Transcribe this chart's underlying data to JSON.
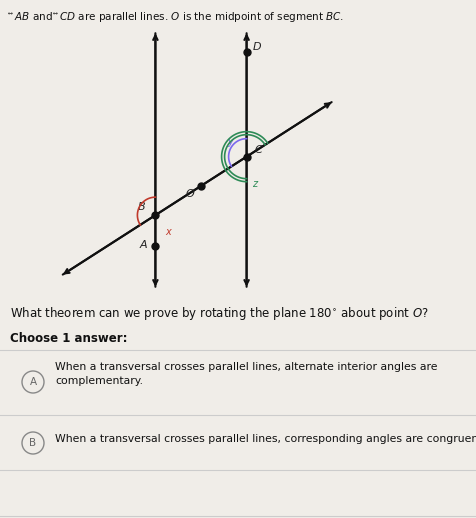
{
  "bg_color": "#f0ede8",
  "title_text": "$\\overleftrightarrow{AB}$ and $\\overleftrightarrow{CD}$ are parallel lines. $O$ is the midpoint of segment $BC$.",
  "title_fontsize": 7.5,
  "question_text": "What theorem can we prove by rotating the plane $180^{\\circ}$ about point $O$?",
  "choose_text": "Choose 1 answer:",
  "answer_A": "When a transversal crosses parallel lines, alternate interior angles are\ncomplementary.",
  "answer_B": "When a transversal crosses parallel lines, corresponding angles are congruent.",
  "line_color": "#111111",
  "point_color": "#111111",
  "angle_color_x": "#c0392b",
  "angle_color_y": "#7b68ee",
  "angle_color_z": "#2e8b57",
  "p1x": 0.33,
  "p2x": 0.57,
  "ts": [
    0.08,
    0.93
  ],
  "te": [
    0.8,
    0.28
  ]
}
